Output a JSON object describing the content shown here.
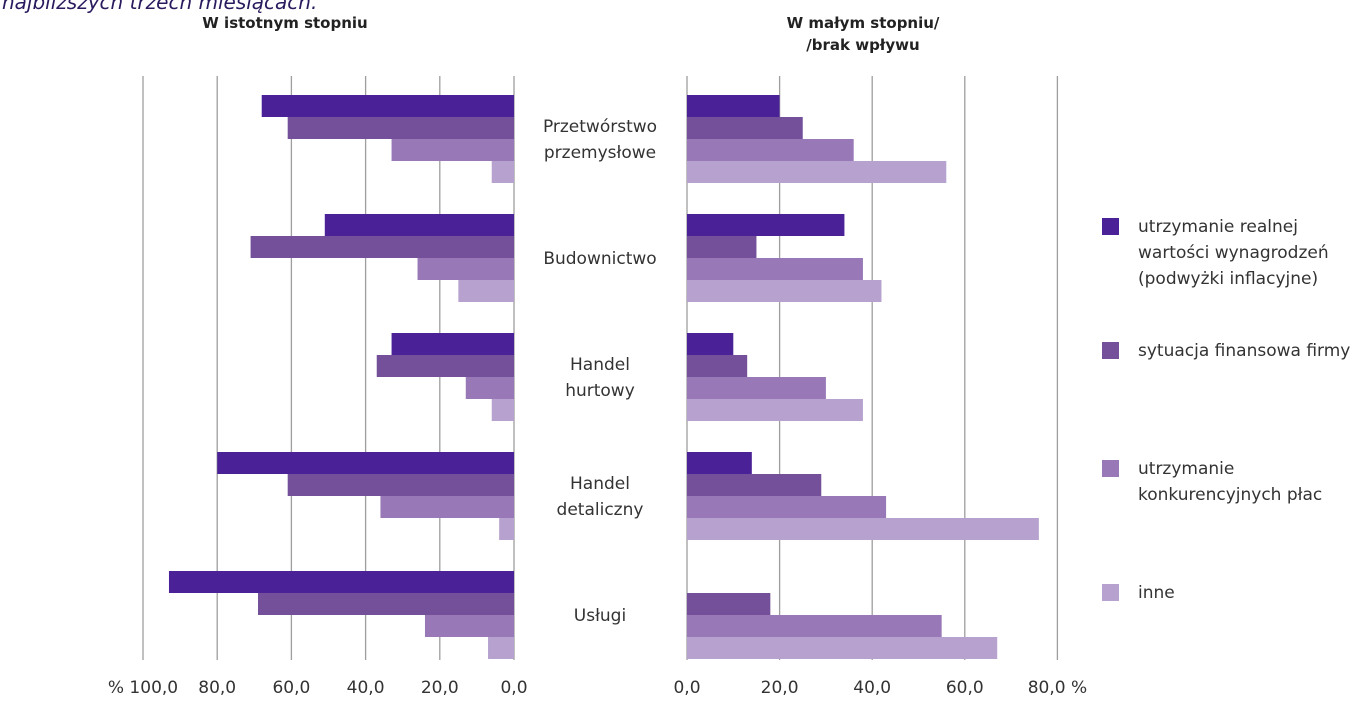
{
  "caption": "najbliższych trzech miesiącach.",
  "left_header": "W istotnym stopniu",
  "right_header_line1": "W małym stopniu/",
  "right_header_line2": "/brak wpływu",
  "chart_data": {
    "type": "bar",
    "orientation": "horizontal",
    "categories": [
      [
        "Przetwórstwo",
        "przemysłowe"
      ],
      [
        "Budownictwo"
      ],
      [
        "Handel",
        "hurtowy"
      ],
      [
        "Handel",
        "detaliczny"
      ],
      [
        "Usługi"
      ]
    ],
    "colors": [
      "#4a2196",
      "#74509b",
      "#9878b6",
      "#b7a2cf"
    ],
    "series": [
      {
        "name": "utrzymanie realnej wartości wynagrodzeń (podwyżki inflacyjne)",
        "left": [
          68,
          51,
          33,
          80,
          93
        ],
        "right": [
          20,
          34,
          10,
          14,
          0
        ]
      },
      {
        "name": "sytuacja finansowa firmy",
        "left": [
          61,
          71,
          37,
          61,
          69
        ],
        "right": [
          25,
          15,
          13,
          29,
          18
        ]
      },
      {
        "name": "utrzymanie konkurencyjnych płac",
        "left": [
          33,
          26,
          13,
          36,
          24
        ],
        "right": [
          36,
          38,
          30,
          43,
          55
        ]
      },
      {
        "name": "inne",
        "left": [
          6,
          15,
          6,
          4,
          7
        ],
        "right": [
          56,
          42,
          38,
          76,
          67
        ]
      }
    ],
    "left_panel": {
      "xlim": [
        100,
        0
      ],
      "tick_values": [
        100,
        80,
        60,
        40,
        20,
        0
      ],
      "tick_labels": [
        "% 100,0",
        "80,0",
        "60,0",
        "40,0",
        "20,0",
        "0,0"
      ]
    },
    "right_panel": {
      "xlim": [
        0,
        80
      ],
      "tick_values": [
        0,
        20,
        40,
        60,
        80
      ],
      "tick_labels": [
        "0,0",
        "20,0",
        "40,0",
        "60,0",
        "80,0 %"
      ]
    },
    "grid": true,
    "legend_position": "right"
  }
}
